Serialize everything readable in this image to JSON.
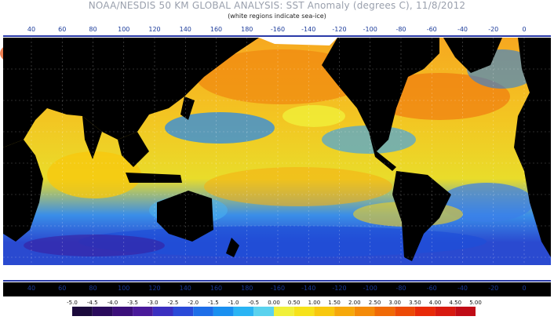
{
  "title": "NOAA/NESDIS 50 KM GLOBAL ANALYSIS: SST Anomaly (degrees C), 11/8/2012",
  "subtitle": "(white regions indicate sea-ice)",
  "longitude_ticks": [
    "40",
    "60",
    "80",
    "100",
    "120",
    "140",
    "160",
    "180",
    "-160",
    "-140",
    "-120",
    "-100",
    "-80",
    "-60",
    "-40",
    "-20",
    "0"
  ],
  "colorbar": {
    "labels": [
      "-5.0",
      "-4.5",
      "-4.0",
      "-3.5",
      "-3.0",
      "-2.5",
      "-2.0",
      "-1.5",
      "-1.0",
      "-0.5",
      "0.00",
      "0.50",
      "1.00",
      "1.50",
      "2.00",
      "2.50",
      "3.00",
      "3.50",
      "4.00",
      "4.50",
      "5.00"
    ],
    "colors": [
      "#1b0a3c",
      "#2a0b5c",
      "#3b0f7a",
      "#4a1a9a",
      "#3b2fc0",
      "#2a4ad8",
      "#1e6ee8",
      "#1a90f0",
      "#2ab4f4",
      "#5ad2ee",
      "#f0f03a",
      "#f6e21a",
      "#f8c80e",
      "#f6a80a",
      "#f48a08",
      "#f06a06",
      "#ec4a06",
      "#e82a08",
      "#d81a10",
      "#c00c16"
    ]
  },
  "colors": {
    "land": "#000000",
    "ice": "#ffffff",
    "frame": "#2a3aa8",
    "tick_text": "#1a3a9a"
  }
}
